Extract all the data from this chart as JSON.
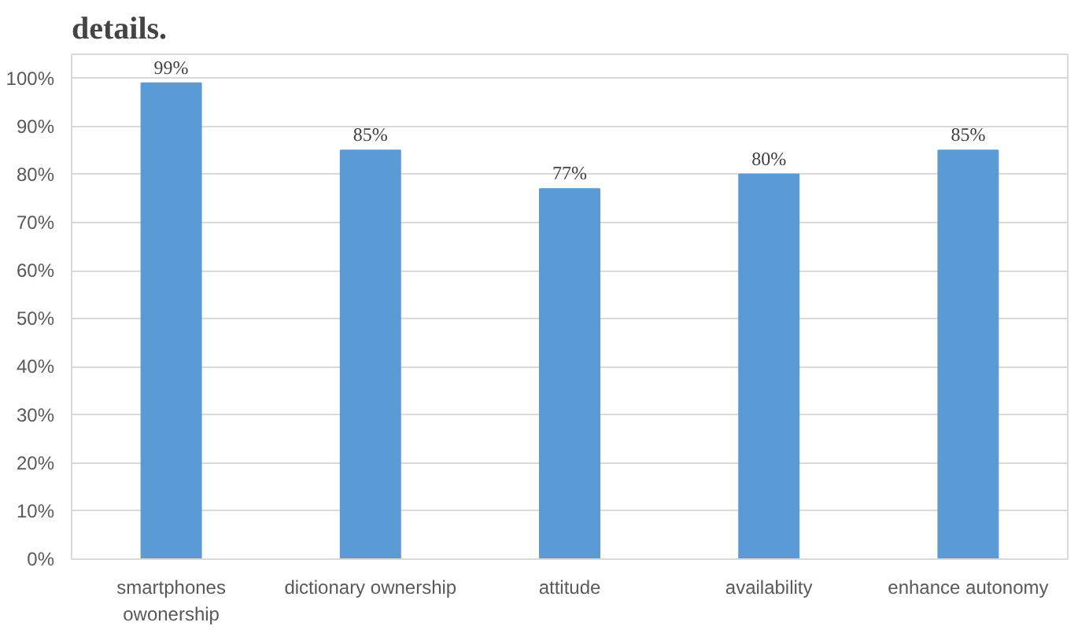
{
  "chart_data": {
    "type": "bar",
    "categories": [
      "smartphones\nowonership",
      "dictionary ownership",
      "attitude",
      "availability",
      "enhance autonomy"
    ],
    "values": [
      99,
      85,
      77,
      80,
      85
    ],
    "value_labels": [
      "99%",
      "85%",
      "77%",
      "80%",
      "85%"
    ],
    "color": "#5b9bd5",
    "ylim": [
      0,
      105
    ],
    "yticks": [
      {
        "value": 0,
        "label": "0%"
      },
      {
        "value": 10,
        "label": "10%"
      },
      {
        "value": 20,
        "label": "20%"
      },
      {
        "value": 30,
        "label": "30%"
      },
      {
        "value": 40,
        "label": "40%"
      },
      {
        "value": 50,
        "label": "50%"
      },
      {
        "value": 60,
        "label": "60%"
      },
      {
        "value": 70,
        "label": "70%"
      },
      {
        "value": 80,
        "label": "80%"
      },
      {
        "value": 90,
        "label": "90%"
      },
      {
        "value": 100,
        "label": "100%"
      }
    ],
    "grid": "y",
    "annotations": [
      "details."
    ]
  }
}
